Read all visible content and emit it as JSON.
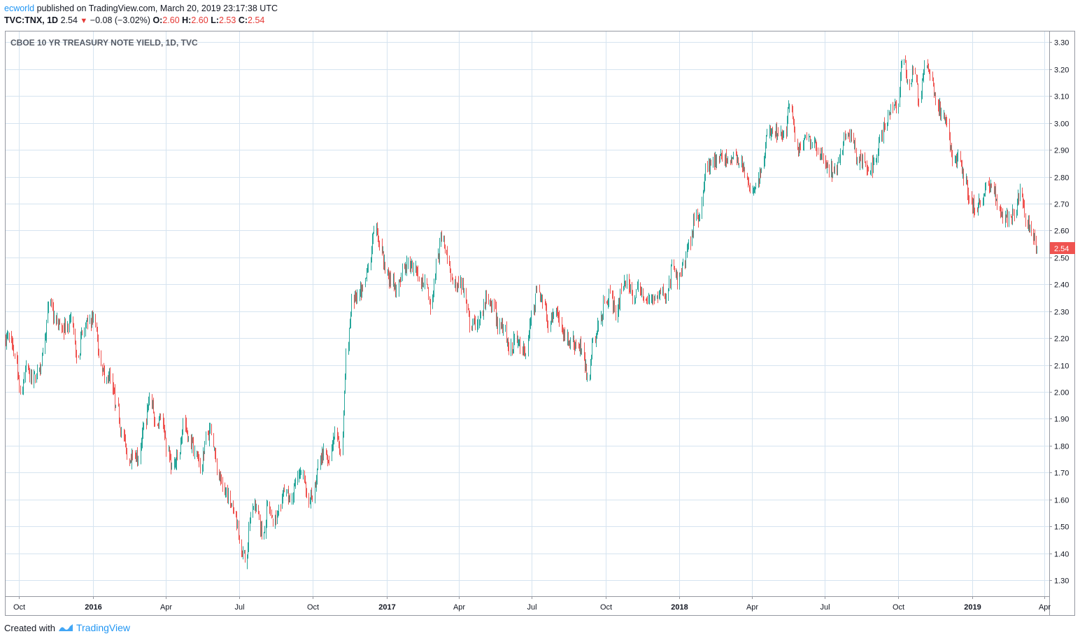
{
  "header": {
    "publisher": "ecworld",
    "published_text": "published on TradingView.com, March 20, 2019 23:17:38 UTC",
    "symbol": "TVC:TNX, 1D",
    "last": "2.54",
    "arrow": "▼",
    "change": "−0.08 (−3.02%)",
    "o_label": "O:",
    "o_value": "2.60",
    "h_label": "H:",
    "h_value": "2.60",
    "l_label": "L:",
    "l_value": "2.53",
    "c_label": "C:",
    "c_value": "2.54"
  },
  "footer": {
    "created_with": "Created with",
    "brand": "TradingView"
  },
  "colors": {
    "up": "#26a69a",
    "down": "#ef5350",
    "grid": "#d6e4f0",
    "price_label_bg": "#ef5350"
  },
  "chart_data": {
    "type": "candlestick",
    "title": "CBOE 10 YR TREASURY NOTE YIELD, 1D, TVC",
    "ylim": [
      1.24,
      3.34
    ],
    "y_ticks": [
      "1.30",
      "1.40",
      "1.50",
      "1.60",
      "1.70",
      "1.80",
      "1.90",
      "2.00",
      "2.10",
      "2.20",
      "2.30",
      "2.40",
      "2.50",
      "2.60",
      "2.70",
      "2.80",
      "2.90",
      "3.00",
      "3.10",
      "3.20",
      "3.30"
    ],
    "x_ticks": [
      {
        "label": "Oct",
        "date": "2015-10-01",
        "bold": false
      },
      {
        "label": "2016",
        "date": "2016-01-01",
        "bold": true
      },
      {
        "label": "Apr",
        "date": "2016-04-01",
        "bold": false
      },
      {
        "label": "Jul",
        "date": "2016-07-01",
        "bold": false
      },
      {
        "label": "Oct",
        "date": "2016-10-01",
        "bold": false
      },
      {
        "label": "2017",
        "date": "2017-01-01",
        "bold": true
      },
      {
        "label": "Apr",
        "date": "2017-04-01",
        "bold": false
      },
      {
        "label": "Jul",
        "date": "2017-07-01",
        "bold": false
      },
      {
        "label": "Oct",
        "date": "2017-10-01",
        "bold": false
      },
      {
        "label": "2018",
        "date": "2018-01-01",
        "bold": true
      },
      {
        "label": "Apr",
        "date": "2018-04-01",
        "bold": false
      },
      {
        "label": "Jul",
        "date": "2018-07-01",
        "bold": false
      },
      {
        "label": "Oct",
        "date": "2018-10-01",
        "bold": false
      },
      {
        "label": "2019",
        "date": "2019-01-01",
        "bold": true
      },
      {
        "label": "Apr",
        "date": "2019-04-01",
        "bold": false
      }
    ],
    "x_range": [
      "2015-09-14",
      "2019-04-07"
    ],
    "last_price_label": "2.54",
    "grid": true,
    "candles_weekly_close": [
      [
        "2015-09-14",
        2.2
      ],
      [
        "2015-09-21",
        2.13
      ],
      [
        "2015-09-28",
        2.0
      ],
      [
        "2015-10-05",
        2.1
      ],
      [
        "2015-10-12",
        2.03
      ],
      [
        "2015-10-19",
        2.08
      ],
      [
        "2015-10-26",
        2.15
      ],
      [
        "2015-11-02",
        2.33
      ],
      [
        "2015-11-09",
        2.28
      ],
      [
        "2015-11-16",
        2.25
      ],
      [
        "2015-11-23",
        2.23
      ],
      [
        "2015-11-30",
        2.28
      ],
      [
        "2015-12-07",
        2.13
      ],
      [
        "2015-12-14",
        2.22
      ],
      [
        "2015-12-21",
        2.25
      ],
      [
        "2015-12-28",
        2.28
      ],
      [
        "2016-01-04",
        2.13
      ],
      [
        "2016-01-11",
        2.05
      ],
      [
        "2016-01-18",
        2.05
      ],
      [
        "2016-01-25",
        1.95
      ],
      [
        "2016-02-01",
        1.85
      ],
      [
        "2016-02-08",
        1.75
      ],
      [
        "2016-02-15",
        1.77
      ],
      [
        "2016-02-22",
        1.75
      ],
      [
        "2016-02-29",
        1.88
      ],
      [
        "2016-03-07",
        1.98
      ],
      [
        "2016-03-14",
        1.88
      ],
      [
        "2016-03-21",
        1.9
      ],
      [
        "2016-03-28",
        1.78
      ],
      [
        "2016-04-04",
        1.72
      ],
      [
        "2016-04-11",
        1.75
      ],
      [
        "2016-04-18",
        1.89
      ],
      [
        "2016-04-25",
        1.83
      ],
      [
        "2016-05-02",
        1.78
      ],
      [
        "2016-05-09",
        1.7
      ],
      [
        "2016-05-16",
        1.84
      ],
      [
        "2016-05-23",
        1.85
      ],
      [
        "2016-05-30",
        1.7
      ],
      [
        "2016-06-06",
        1.64
      ],
      [
        "2016-06-13",
        1.62
      ],
      [
        "2016-06-20",
        1.56
      ],
      [
        "2016-06-27",
        1.44
      ],
      [
        "2016-07-04",
        1.37
      ],
      [
        "2016-07-11",
        1.55
      ],
      [
        "2016-07-18",
        1.57
      ],
      [
        "2016-07-25",
        1.46
      ],
      [
        "2016-08-01",
        1.58
      ],
      [
        "2016-08-08",
        1.51
      ],
      [
        "2016-08-15",
        1.58
      ],
      [
        "2016-08-22",
        1.63
      ],
      [
        "2016-08-29",
        1.6
      ],
      [
        "2016-09-05",
        1.67
      ],
      [
        "2016-09-12",
        1.7
      ],
      [
        "2016-09-19",
        1.62
      ],
      [
        "2016-09-26",
        1.6
      ],
      [
        "2016-10-03",
        1.73
      ],
      [
        "2016-10-10",
        1.79
      ],
      [
        "2016-10-17",
        1.74
      ],
      [
        "2016-10-24",
        1.85
      ],
      [
        "2016-10-31",
        1.78
      ],
      [
        "2016-11-07",
        2.15
      ],
      [
        "2016-11-14",
        2.34
      ],
      [
        "2016-11-21",
        2.36
      ],
      [
        "2016-11-28",
        2.39
      ],
      [
        "2016-12-05",
        2.47
      ],
      [
        "2016-12-12",
        2.6
      ],
      [
        "2016-12-19",
        2.54
      ],
      [
        "2016-12-26",
        2.45
      ],
      [
        "2017-01-02",
        2.41
      ],
      [
        "2017-01-09",
        2.38
      ],
      [
        "2017-01-16",
        2.47
      ],
      [
        "2017-01-23",
        2.48
      ],
      [
        "2017-01-30",
        2.46
      ],
      [
        "2017-02-06",
        2.41
      ],
      [
        "2017-02-13",
        2.42
      ],
      [
        "2017-02-20",
        2.31
      ],
      [
        "2017-02-27",
        2.49
      ],
      [
        "2017-03-06",
        2.57
      ],
      [
        "2017-03-13",
        2.5
      ],
      [
        "2017-03-20",
        2.4
      ],
      [
        "2017-03-27",
        2.39
      ],
      [
        "2017-04-03",
        2.38
      ],
      [
        "2017-04-10",
        2.24
      ],
      [
        "2017-04-17",
        2.25
      ],
      [
        "2017-04-24",
        2.29
      ],
      [
        "2017-05-01",
        2.35
      ],
      [
        "2017-05-08",
        2.33
      ],
      [
        "2017-05-15",
        2.23
      ],
      [
        "2017-05-22",
        2.25
      ],
      [
        "2017-05-29",
        2.15
      ],
      [
        "2017-06-05",
        2.2
      ],
      [
        "2017-06-12",
        2.16
      ],
      [
        "2017-06-19",
        2.14
      ],
      [
        "2017-06-26",
        2.3
      ],
      [
        "2017-07-03",
        2.38
      ],
      [
        "2017-07-10",
        2.33
      ],
      [
        "2017-07-17",
        2.24
      ],
      [
        "2017-07-24",
        2.29
      ],
      [
        "2017-07-31",
        2.26
      ],
      [
        "2017-08-07",
        2.19
      ],
      [
        "2017-08-14",
        2.19
      ],
      [
        "2017-08-21",
        2.17
      ],
      [
        "2017-08-28",
        2.16
      ],
      [
        "2017-09-04",
        2.05
      ],
      [
        "2017-09-11",
        2.2
      ],
      [
        "2017-09-18",
        2.25
      ],
      [
        "2017-09-25",
        2.33
      ],
      [
        "2017-10-02",
        2.37
      ],
      [
        "2017-10-09",
        2.28
      ],
      [
        "2017-10-16",
        2.38
      ],
      [
        "2017-10-23",
        2.42
      ],
      [
        "2017-10-30",
        2.34
      ],
      [
        "2017-11-06",
        2.4
      ],
      [
        "2017-11-13",
        2.35
      ],
      [
        "2017-11-20",
        2.34
      ],
      [
        "2017-11-27",
        2.36
      ],
      [
        "2017-12-04",
        2.37
      ],
      [
        "2017-12-11",
        2.35
      ],
      [
        "2017-12-18",
        2.48
      ],
      [
        "2017-12-25",
        2.4
      ],
      [
        "2018-01-01",
        2.48
      ],
      [
        "2018-01-08",
        2.55
      ],
      [
        "2018-01-15",
        2.64
      ],
      [
        "2018-01-22",
        2.66
      ],
      [
        "2018-01-29",
        2.84
      ],
      [
        "2018-02-05",
        2.85
      ],
      [
        "2018-02-12",
        2.87
      ],
      [
        "2018-02-19",
        2.87
      ],
      [
        "2018-02-26",
        2.86
      ],
      [
        "2018-03-05",
        2.89
      ],
      [
        "2018-03-12",
        2.85
      ],
      [
        "2018-03-19",
        2.82
      ],
      [
        "2018-03-26",
        2.74
      ],
      [
        "2018-04-02",
        2.77
      ],
      [
        "2018-04-09",
        2.83
      ],
      [
        "2018-04-16",
        2.96
      ],
      [
        "2018-04-23",
        2.96
      ],
      [
        "2018-04-30",
        2.95
      ],
      [
        "2018-05-07",
        2.97
      ],
      [
        "2018-05-14",
        3.06
      ],
      [
        "2018-05-21",
        2.93
      ],
      [
        "2018-05-28",
        2.9
      ],
      [
        "2018-06-04",
        2.94
      ],
      [
        "2018-06-11",
        2.92
      ],
      [
        "2018-06-18",
        2.89
      ],
      [
        "2018-06-25",
        2.86
      ],
      [
        "2018-07-02",
        2.82
      ],
      [
        "2018-07-09",
        2.83
      ],
      [
        "2018-07-16",
        2.89
      ],
      [
        "2018-07-23",
        2.96
      ],
      [
        "2018-07-30",
        2.95
      ],
      [
        "2018-08-06",
        2.87
      ],
      [
        "2018-08-13",
        2.86
      ],
      [
        "2018-08-20",
        2.82
      ],
      [
        "2018-08-27",
        2.86
      ],
      [
        "2018-09-03",
        2.94
      ],
      [
        "2018-09-10",
        2.99
      ],
      [
        "2018-09-17",
        3.06
      ],
      [
        "2018-09-24",
        3.05
      ],
      [
        "2018-10-01",
        3.23
      ],
      [
        "2018-10-08",
        3.16
      ],
      [
        "2018-10-15",
        3.19
      ],
      [
        "2018-10-22",
        3.08
      ],
      [
        "2018-10-29",
        3.21
      ],
      [
        "2018-11-05",
        3.18
      ],
      [
        "2018-11-12",
        3.08
      ],
      [
        "2018-11-19",
        3.04
      ],
      [
        "2018-11-26",
        2.99
      ],
      [
        "2018-12-03",
        2.85
      ],
      [
        "2018-12-10",
        2.89
      ],
      [
        "2018-12-17",
        2.79
      ],
      [
        "2018-12-24",
        2.72
      ],
      [
        "2018-12-31",
        2.67
      ],
      [
        "2019-01-07",
        2.7
      ],
      [
        "2019-01-14",
        2.78
      ],
      [
        "2019-01-21",
        2.76
      ],
      [
        "2019-01-28",
        2.69
      ],
      [
        "2019-02-04",
        2.63
      ],
      [
        "2019-02-11",
        2.66
      ],
      [
        "2019-02-18",
        2.65
      ],
      [
        "2019-02-25",
        2.75
      ],
      [
        "2019-03-04",
        2.63
      ],
      [
        "2019-03-11",
        2.59
      ],
      [
        "2019-03-18",
        2.54
      ]
    ]
  }
}
